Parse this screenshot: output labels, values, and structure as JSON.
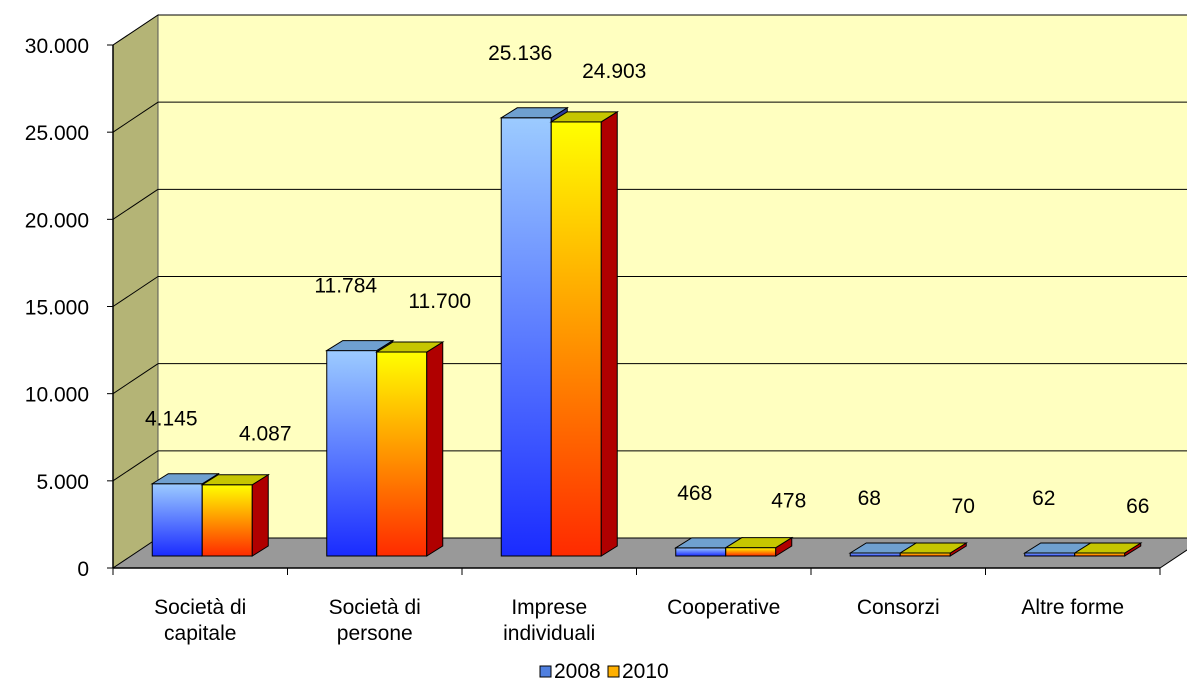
{
  "chart_data": {
    "type": "bar",
    "style": "3d-clustered-column",
    "categories": [
      [
        "Società di",
        "capitale"
      ],
      [
        "Società di",
        "persone"
      ],
      [
        "Imprese",
        "individuali"
      ],
      [
        "Cooperative"
      ],
      [
        "Consorzi"
      ],
      [
        "Altre forme"
      ]
    ],
    "series": [
      {
        "name": "2008",
        "values": [
          4145,
          11784,
          25136,
          468,
          68,
          62
        ],
        "labels": [
          "4.145",
          "11.784",
          "25.136",
          "468",
          "68",
          "62"
        ],
        "colors": {
          "light": "#9ccbff",
          "dark": "#1a2bff",
          "top": "#6fa0d0",
          "side": "#2a3b9a"
        }
      },
      {
        "name": "2010",
        "values": [
          4087,
          11700,
          24903,
          478,
          70,
          66
        ],
        "labels": [
          "4.087",
          "11.700",
          "24.903",
          "478",
          "70",
          "66"
        ],
        "colors": {
          "light": "#ffff00",
          "dark": "#ff2a00",
          "top": "#c6c600",
          "side": "#b00000"
        }
      }
    ],
    "ylim": [
      0,
      30000
    ],
    "yticks": [
      0,
      5000,
      10000,
      15000,
      20000,
      25000,
      30000
    ],
    "ytick_labels": [
      "0",
      "5.000",
      "10.000",
      "15.000",
      "20.000",
      "25.000",
      "30.000"
    ],
    "grid": true,
    "legend": "bottom-center",
    "colors": {
      "back_wall": "#ffffc0",
      "side_wall": "#b4b476",
      "floor": "#999999"
    }
  }
}
